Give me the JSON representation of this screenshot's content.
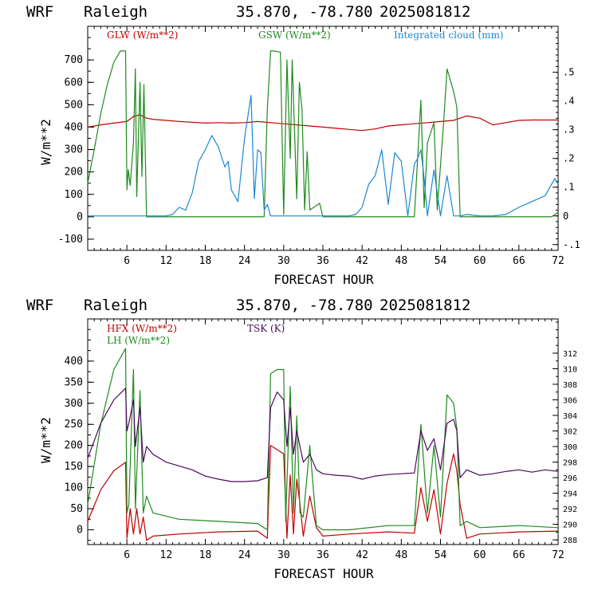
{
  "colors": {
    "glw": "#c00000",
    "gsw": "#1f8a1f",
    "cloud": "#1c88d0",
    "hfx": "#c00000",
    "lh": "#1f8a1f",
    "tsk": "#4b0a5e",
    "frame": "#000000"
  },
  "chart_data": [
    {
      "type": "line",
      "header": {
        "model": "WRF",
        "location": "Raleigh",
        "coords": "35.870, -78.780",
        "run": "2025081812"
      },
      "xlabel": "FORECAST HOUR",
      "ylabel": "W/m**2",
      "xlim": [
        0,
        72
      ],
      "ylim": [
        -150,
        850
      ],
      "y2lim": [
        -0.12,
        0.66
      ],
      "xticks": [
        6,
        12,
        18,
        24,
        30,
        36,
        42,
        48,
        54,
        60,
        66,
        72
      ],
      "yticks": [
        -100,
        0,
        100,
        200,
        300,
        400,
        500,
        600,
        700
      ],
      "y2ticks": [
        -0.1,
        0,
        0.1,
        0.2,
        0.3,
        0.4,
        0.5
      ],
      "y2tick_labels": [
        "-.1",
        "0",
        ".1",
        ".2",
        ".3",
        ".4",
        ".5"
      ],
      "series": [
        {
          "name": "GLW (W/m**2)",
          "axis": "left",
          "color_key": "glw",
          "x": [
            0,
            2,
            4,
            6,
            7,
            8,
            9,
            10,
            12,
            14,
            16,
            18,
            20,
            22,
            24,
            26,
            28,
            30,
            32,
            34,
            36,
            38,
            40,
            42,
            44,
            46,
            48,
            50,
            52,
            54,
            56,
            58,
            60,
            62,
            64,
            66,
            68,
            70,
            72
          ],
          "y": [
            400,
            410,
            418,
            425,
            448,
            455,
            440,
            435,
            430,
            425,
            422,
            418,
            420,
            418,
            420,
            425,
            420,
            415,
            410,
            405,
            400,
            395,
            390,
            385,
            392,
            405,
            410,
            415,
            420,
            425,
            430,
            450,
            440,
            410,
            420,
            430,
            432,
            432,
            432
          ]
        },
        {
          "name": "GSW (W/m**2)",
          "axis": "left",
          "color_key": "gsw",
          "x": [
            0,
            1,
            2,
            3,
            4,
            5,
            5.8,
            6,
            6.2,
            6.5,
            7,
            7.3,
            7.5,
            8,
            8.3,
            8.6,
            9,
            10,
            27,
            27.5,
            28,
            28.5,
            29.5,
            30,
            30.5,
            31,
            31.3,
            32,
            32.4,
            32.8,
            33.2,
            33.6,
            34,
            35.5,
            36,
            50,
            51,
            51.5,
            52,
            53,
            53.5,
            54.5,
            55,
            56,
            56.5,
            57,
            71,
            72
          ],
          "y": [
            150,
            300,
            460,
            590,
            690,
            740,
            740,
            120,
            210,
            140,
            330,
            660,
            90,
            600,
            180,
            590,
            0,
            0,
            0,
            480,
            740,
            740,
            735,
            10,
            700,
            260,
            700,
            80,
            600,
            480,
            30,
            290,
            30,
            60,
            0,
            0,
            520,
            40,
            330,
            420,
            30,
            430,
            660,
            560,
            490,
            0,
            0,
            20
          ]
        },
        {
          "name": "Integrated cloud (mm)",
          "axis": "right",
          "color_key": "cloud",
          "x": [
            0,
            12,
            13,
            14,
            15,
            16,
            17,
            18,
            19,
            20,
            21,
            21.5,
            22,
            23,
            24,
            25,
            25.5,
            26,
            26.5,
            27,
            27.5,
            28,
            40,
            41,
            42,
            43,
            44,
            45,
            46,
            47,
            48,
            49,
            50,
            50.5,
            51,
            51.5,
            52,
            53,
            54,
            55,
            56,
            57,
            58,
            60,
            62,
            64,
            66,
            68,
            70,
            71.5,
            72
          ],
          "y": [
            0,
            0,
            0.005,
            0.03,
            0.02,
            0.08,
            0.19,
            0.23,
            0.28,
            0.24,
            0.17,
            0.19,
            0.09,
            0.05,
            0.27,
            0.42,
            0.06,
            0.23,
            0.22,
            0.02,
            0.04,
            0,
            0,
            0.005,
            0.03,
            0.11,
            0.14,
            0.23,
            0.04,
            0.22,
            0.19,
            0.0,
            0.18,
            0.2,
            0.23,
            0.13,
            0.0,
            0.16,
            0.0,
            0.14,
            0.0,
            0.0,
            0.005,
            0.0,
            0.0,
            0.005,
            0.03,
            0.05,
            0.07,
            0.13,
            0.11
          ]
        }
      ]
    },
    {
      "type": "line",
      "header": {
        "model": "WRF",
        "location": "Raleigh",
        "coords": "35.870, -78.780",
        "run": "2025081812"
      },
      "xlabel": "FORECAST HOUR",
      "ylabel": "W/m**2",
      "xlim": [
        0,
        72
      ],
      "ylim": [
        -35,
        500
      ],
      "y2lim": [
        287.4,
        316.4
      ],
      "xticks": [
        6,
        12,
        18,
        24,
        30,
        36,
        42,
        48,
        54,
        60,
        66,
        72
      ],
      "yticks": [
        0,
        50,
        100,
        150,
        200,
        250,
        300,
        350,
        400
      ],
      "y2ticks": [
        288,
        290,
        292,
        294,
        296,
        298,
        300,
        302,
        304,
        306,
        308,
        310,
        312
      ],
      "y2tick_labels": [
        "288",
        "290",
        "292",
        "294",
        "296",
        "298",
        "300",
        "302",
        "304",
        "306",
        "308",
        "310",
        "312"
      ],
      "series": [
        {
          "name": "HFX (W/m**2)",
          "axis": "left",
          "color_key": "hfx",
          "x": [
            0,
            2,
            4,
            5.8,
            6,
            6.5,
            7,
            7.5,
            8,
            8.5,
            9,
            10,
            14,
            20,
            26,
            27.5,
            28,
            29,
            30,
            30.5,
            31,
            31.5,
            32,
            32.5,
            33,
            34,
            35,
            36,
            40,
            46,
            50,
            51,
            52,
            53,
            54,
            55,
            56,
            56.5,
            57,
            58,
            60,
            66,
            72
          ],
          "y": [
            20,
            95,
            140,
            160,
            -20,
            50,
            -10,
            50,
            -10,
            30,
            -25,
            -15,
            -10,
            -5,
            -3,
            -20,
            200,
            190,
            180,
            -20,
            130,
            -10,
            120,
            60,
            -15,
            80,
            5,
            -15,
            -10,
            -5,
            -8,
            100,
            20,
            95,
            -10,
            110,
            180,
            140,
            60,
            -20,
            -10,
            -5,
            -3
          ]
        },
        {
          "name": "LH  (W/m**2)",
          "axis": "left",
          "color_key": "lh",
          "x": [
            0,
            2,
            4,
            5.8,
            6,
            6.3,
            7,
            7.3,
            8,
            8.5,
            9,
            10,
            14,
            20,
            26,
            27.5,
            28,
            29,
            30,
            30.3,
            31,
            31.5,
            32,
            32.5,
            33,
            34,
            35,
            36,
            40,
            46,
            50,
            51,
            52,
            53,
            54,
            55,
            56,
            56.5,
            57,
            58,
            60,
            66,
            72
          ],
          "y": [
            60,
            250,
            380,
            430,
            40,
            60,
            380,
            50,
            330,
            40,
            80,
            40,
            25,
            20,
            15,
            0,
            370,
            380,
            380,
            20,
            340,
            40,
            270,
            40,
            30,
            200,
            10,
            0,
            0,
            10,
            10,
            250,
            40,
            200,
            30,
            320,
            300,
            240,
            10,
            20,
            5,
            10,
            5
          ]
        },
        {
          "name": "TSK (K)",
          "axis": "right",
          "color_key": "tsk",
          "x": [
            0,
            2,
            4,
            5.8,
            6,
            6.3,
            7,
            7.3,
            8,
            8.5,
            9,
            10,
            12,
            14,
            16,
            18,
            20,
            22,
            24,
            26,
            27.5,
            28,
            29,
            30,
            30.5,
            31,
            31.5,
            32,
            33,
            34,
            35,
            36,
            38,
            40,
            42,
            44,
            46,
            48,
            50,
            51,
            52,
            53,
            54,
            55,
            56,
            56.5,
            57,
            58,
            60,
            62,
            64,
            66,
            68,
            70,
            72
          ],
          "y": [
            298.5,
            303,
            306,
            307.5,
            302,
            303,
            306,
            300,
            305,
            298,
            300,
            299,
            298,
            297.5,
            297,
            296.2,
            295.8,
            295.5,
            295.5,
            295.6,
            296,
            305,
            307,
            306,
            300,
            305,
            299,
            302,
            298,
            299,
            297,
            296.5,
            296.3,
            296.2,
            295.8,
            296.2,
            296.4,
            296.5,
            296.6,
            302,
            299.5,
            301,
            297,
            303,
            303.5,
            302,
            296,
            297,
            296.3,
            296.5,
            296.8,
            297,
            296.7,
            297,
            296.8
          ]
        }
      ]
    }
  ]
}
